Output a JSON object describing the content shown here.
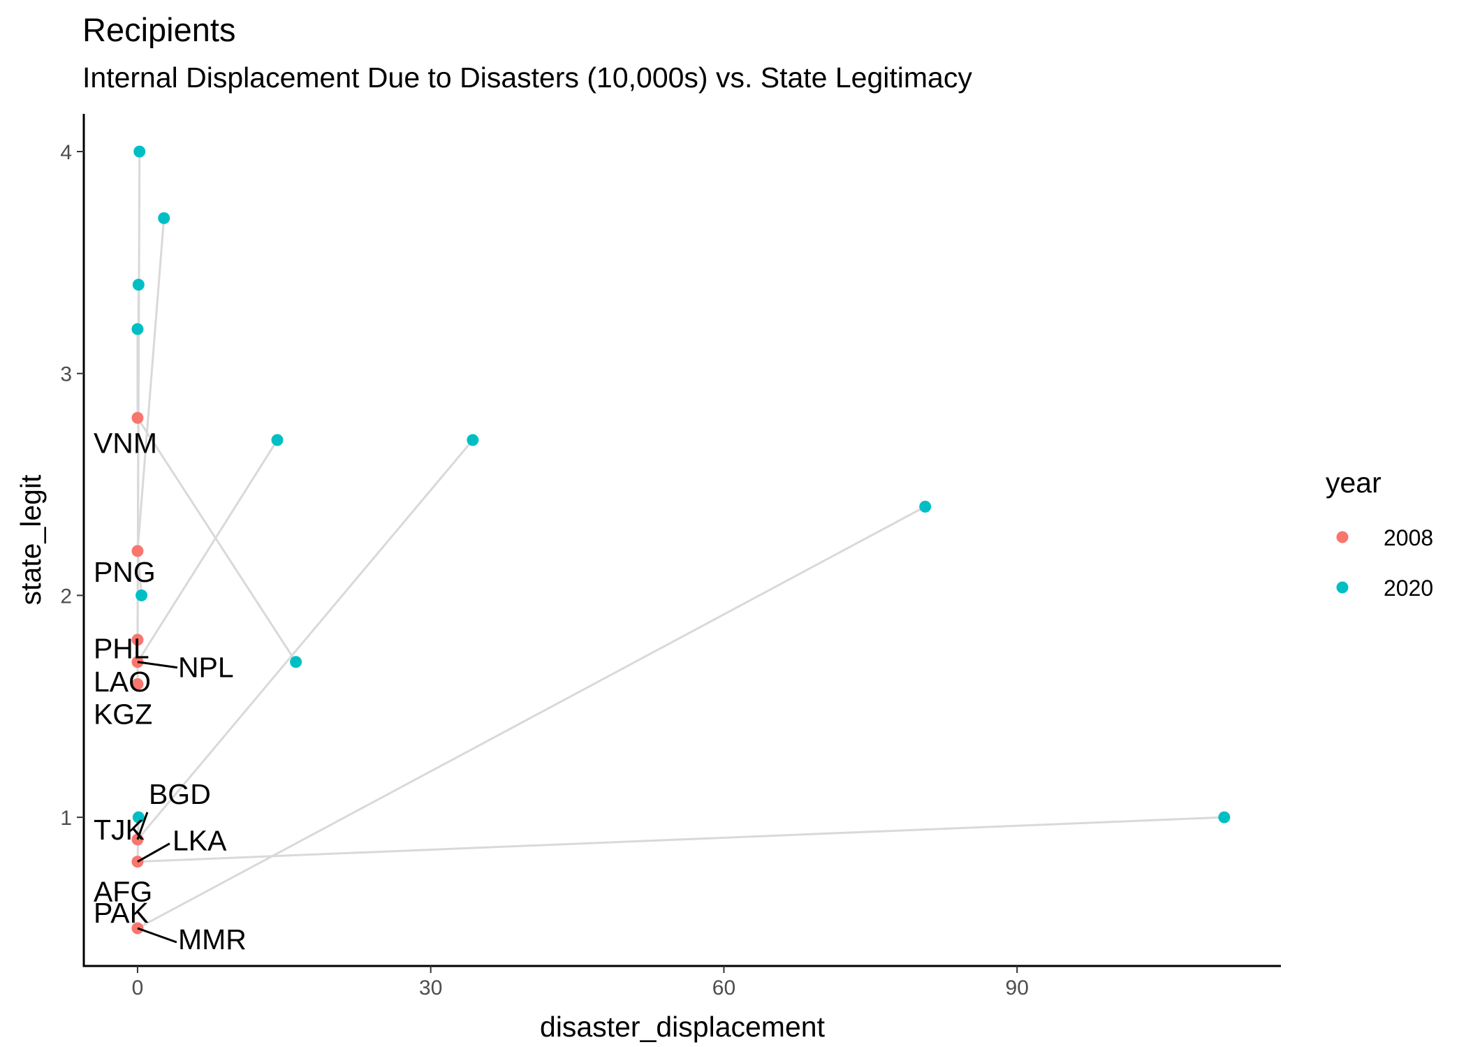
{
  "chart_data": {
    "type": "scatter",
    "title": "Recipients",
    "subtitle": "Internal Displacement Due to Disasters (10,000s) vs. State Legitimacy",
    "xlabel": "disaster_displacement",
    "ylabel": "state_legit",
    "xlim": [
      -5.5,
      117
    ],
    "ylim": [
      0.33,
      4.17
    ],
    "x_ticks": [
      0,
      30,
      60,
      90
    ],
    "x_tick_labels": [
      "0",
      "30",
      "60",
      "90"
    ],
    "y_ticks": [
      1,
      2,
      3,
      4
    ],
    "y_tick_labels": [
      "1",
      "2",
      "3",
      "4"
    ],
    "grid": false,
    "legend": {
      "title": "year",
      "position": "right",
      "entries": [
        {
          "label": "2008",
          "color": "#F8766D"
        },
        {
          "label": "2020",
          "color": "#00BFC4"
        }
      ]
    },
    "colors": {
      "2008": "#F8766D",
      "2020": "#00BFC4",
      "connector": "#d9d9d9"
    },
    "series": [
      {
        "name": "2008",
        "points": [
          {
            "x": 0,
            "y": 2.8
          },
          {
            "x": 0,
            "y": 2.2
          },
          {
            "x": 0,
            "y": 1.8
          },
          {
            "x": 0,
            "y": 1.7
          },
          {
            "x": 0,
            "y": 1.6
          },
          {
            "x": 0,
            "y": 0.9
          },
          {
            "x": 0,
            "y": 0.8
          },
          {
            "x": 0,
            "y": 0.5
          }
        ]
      },
      {
        "name": "2020",
        "points": [
          {
            "x": 0.2,
            "y": 4.0
          },
          {
            "x": 2.7,
            "y": 3.7
          },
          {
            "x": 0.1,
            "y": 3.4
          },
          {
            "x": 0,
            "y": 3.2
          },
          {
            "x": 14.3,
            "y": 2.7
          },
          {
            "x": 34.3,
            "y": 2.7
          },
          {
            "x": 80.6,
            "y": 2.4
          },
          {
            "x": 0.4,
            "y": 2.0
          },
          {
            "x": 16.2,
            "y": 1.7
          },
          {
            "x": 0.1,
            "y": 1.0
          },
          {
            "x": 111.2,
            "y": 1.0
          }
        ]
      }
    ],
    "connections": [
      {
        "x1": 0,
        "y1": 2.8,
        "x2": 0,
        "y2": 3.2
      },
      {
        "x1": 0,
        "y1": 2.8,
        "x2": 16.2,
        "y2": 1.7
      },
      {
        "x1": 0,
        "y1": 2.2,
        "x2": 0.4,
        "y2": 2.0
      },
      {
        "x1": 0,
        "y1": 2.2,
        "x2": 2.7,
        "y2": 3.7
      },
      {
        "x1": 0,
        "y1": 1.8,
        "x2": 0.2,
        "y2": 4.0
      },
      {
        "x1": 0,
        "y1": 1.7,
        "x2": 14.3,
        "y2": 2.7
      },
      {
        "x1": 0,
        "y1": 1.6,
        "x2": 0.1,
        "y2": 3.4
      },
      {
        "x1": 0,
        "y1": 0.9,
        "x2": 34.3,
        "y2": 2.7
      },
      {
        "x1": 0,
        "y1": 0.8,
        "x2": 111.2,
        "y2": 1.0
      },
      {
        "x1": 0,
        "y1": 0.8,
        "x2": 0.1,
        "y2": 1.0
      },
      {
        "x1": 0,
        "y1": 0.5,
        "x2": 80.6,
        "y2": 2.4
      }
    ],
    "annotations": [
      {
        "text": "VNM",
        "x": 0,
        "y": 2.8
      },
      {
        "text": "PNG",
        "x": 0,
        "y": 2.2
      },
      {
        "text": "LAO",
        "x": 0,
        "y": 1.8
      },
      {
        "text": "PHL",
        "x": 0,
        "y": 1.7
      },
      {
        "text": "NPL",
        "x": 0,
        "y": 1.7
      },
      {
        "text": "KGZ",
        "x": 0,
        "y": 1.6
      },
      {
        "text": "BGD",
        "x": 0,
        "y": 0.9
      },
      {
        "text": "TJK",
        "x": 0,
        "y": 0.9
      },
      {
        "text": "LKA",
        "x": 0,
        "y": 0.8
      },
      {
        "text": "AFG",
        "x": 0,
        "y": 0.8
      },
      {
        "text": "PAK",
        "x": 0,
        "y": 0.5
      },
      {
        "text": "MMR",
        "x": 0,
        "y": 0.5
      }
    ]
  }
}
